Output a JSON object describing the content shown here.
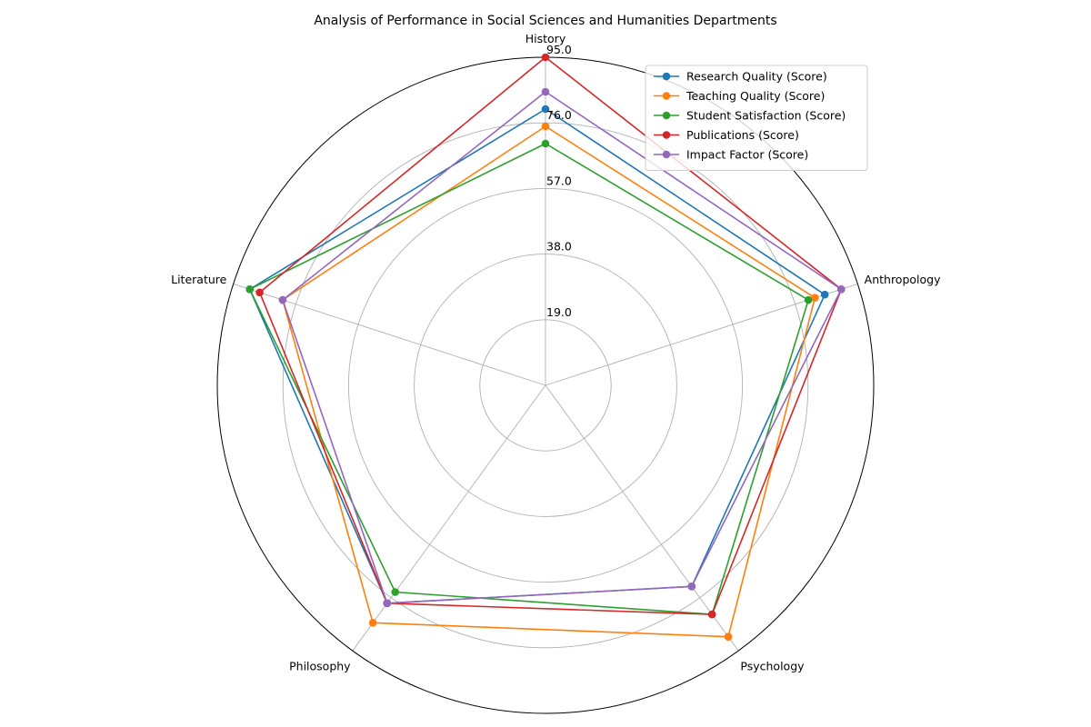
{
  "chart_data": {
    "type": "radar",
    "title": "Analysis of Performance in Social Sciences and Humanities Departments",
    "categories": [
      "History",
      "Anthropology",
      "Psychology",
      "Philosophy",
      "Literature"
    ],
    "r_ticks": [
      19.0,
      38.0,
      57.0,
      76.0,
      95.0
    ],
    "r_tick_labels": [
      "19.0",
      "38.0",
      "57.0",
      "76.0",
      "95.0"
    ],
    "rlim": [
      0,
      95
    ],
    "grid": true,
    "legend_position": "top-right",
    "series": [
      {
        "name": "Research Quality (Score)",
        "color": "#1f77b4",
        "values": [
          80,
          85,
          72,
          78,
          90
        ]
      },
      {
        "name": "Teaching Quality (Score)",
        "color": "#ff7f0e",
        "values": [
          75,
          82,
          90,
          85,
          80
        ]
      },
      {
        "name": "Student Satisfaction (Score)",
        "color": "#2ca02c",
        "values": [
          70,
          80,
          82,
          74,
          90
        ]
      },
      {
        "name": "Publications (Score)",
        "color": "#d62728",
        "values": [
          95,
          90,
          82,
          78,
          87
        ]
      },
      {
        "name": "Impact Factor (Score)",
        "color": "#9467bd",
        "values": [
          85,
          90,
          72,
          78,
          80
        ]
      }
    ]
  }
}
